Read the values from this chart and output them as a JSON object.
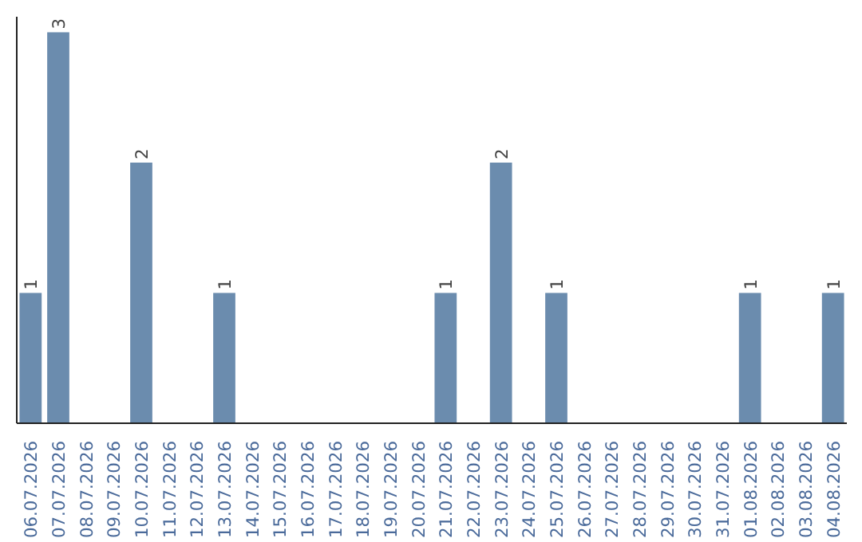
{
  "chart_data": {
    "type": "bar",
    "categories": [
      "06.07.2026",
      "07.07.2026",
      "08.07.2026",
      "09.07.2026",
      "10.07.2026",
      "11.07.2026",
      "12.07.2026",
      "13.07.2026",
      "14.07.2026",
      "15.07.2026",
      "16.07.2026",
      "17.07.2026",
      "18.07.2026",
      "19.07.2026",
      "20.07.2026",
      "21.07.2026",
      "22.07.2026",
      "23.07.2026",
      "24.07.2026",
      "25.07.2026",
      "26.07.2026",
      "27.07.2026",
      "28.07.2026",
      "29.07.2026",
      "30.07.2026",
      "31.07.2026",
      "01.08.2026",
      "02.08.2026",
      "03.08.2026",
      "04.08.2026"
    ],
    "values": [
      1,
      3,
      0,
      0,
      2,
      0,
      0,
      1,
      0,
      0,
      0,
      0,
      0,
      0,
      0,
      1,
      0,
      2,
      0,
      1,
      0,
      0,
      0,
      0,
      0,
      0,
      1,
      0,
      0,
      1
    ],
    "value_labels": [
      "1",
      "3",
      null,
      null,
      "2",
      null,
      null,
      "1",
      null,
      null,
      null,
      null,
      null,
      null,
      null,
      "1",
      null,
      "2",
      null,
      "1",
      null,
      null,
      null,
      null,
      null,
      null,
      "1",
      null,
      null,
      "1"
    ],
    "color": "#6b8cae",
    "grid": false,
    "tick_labels": "x"
  }
}
